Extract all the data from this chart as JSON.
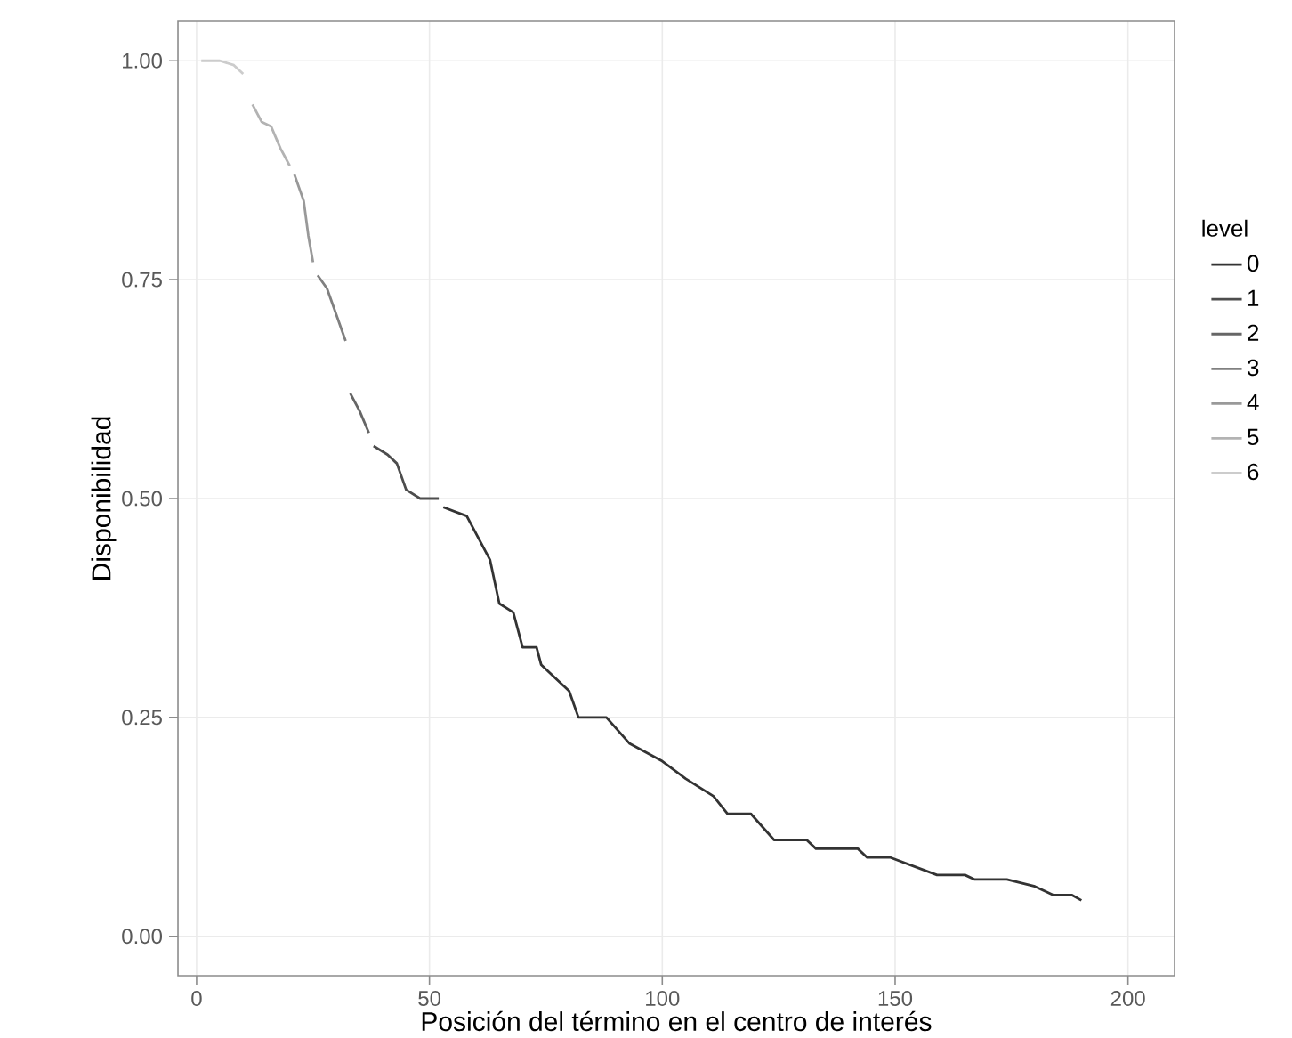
{
  "chart_data": {
    "type": "line",
    "xlabel": "Posición del término en el centro de interés",
    "ylabel": "Disponibilidad",
    "legend_title": "level",
    "xlim": [
      -4,
      210
    ],
    "ylim": [
      -0.045,
      1.045
    ],
    "xticks": [
      0,
      50,
      100,
      150,
      200
    ],
    "yticks": [
      {
        "value": 0,
        "label": "0.00"
      },
      {
        "value": 0.25,
        "label": "0.25"
      },
      {
        "value": 0.5,
        "label": "0.50"
      },
      {
        "value": 0.75,
        "label": "0.75"
      },
      {
        "value": 1,
        "label": "1.00"
      }
    ],
    "grid": true,
    "legend": "right",
    "series": [
      {
        "name": "0",
        "color": "#333333",
        "x": [
          53,
          58,
          61,
          63,
          65,
          68,
          70,
          73,
          74,
          80,
          82,
          88,
          93,
          100,
          105,
          111,
          114,
          119,
          124,
          131,
          133,
          142,
          144,
          149,
          154,
          159,
          165,
          167,
          174,
          180,
          184,
          188,
          190
        ],
        "values": [
          0.49,
          0.48,
          0.45,
          0.43,
          0.38,
          0.37,
          0.33,
          0.33,
          0.31,
          0.28,
          0.25,
          0.25,
          0.22,
          0.2,
          0.18,
          0.16,
          0.14,
          0.14,
          0.11,
          0.11,
          0.1,
          0.1,
          0.09,
          0.09,
          0.08,
          0.07,
          0.07,
          0.065,
          0.065,
          0.057,
          0.047,
          0.047,
          0.041
        ]
      },
      {
        "name": "1",
        "color": "#4d4d4d",
        "x": [
          38,
          41,
          43,
          45,
          48,
          52
        ],
        "values": [
          0.56,
          0.55,
          0.54,
          0.51,
          0.5,
          0.5
        ]
      },
      {
        "name": "2",
        "color": "#666666",
        "x": [
          33,
          35,
          37
        ],
        "values": [
          0.62,
          0.6,
          0.575
        ]
      },
      {
        "name": "3",
        "color": "#808080",
        "x": [
          26,
          28,
          30,
          32
        ],
        "values": [
          0.755,
          0.74,
          0.71,
          0.68
        ]
      },
      {
        "name": "4",
        "color": "#999999",
        "x": [
          21,
          23,
          24,
          25
        ],
        "values": [
          0.87,
          0.84,
          0.8,
          0.77
        ]
      },
      {
        "name": "5",
        "color": "#b3b3b3",
        "x": [
          12,
          14,
          16,
          18,
          20
        ],
        "values": [
          0.95,
          0.93,
          0.925,
          0.9,
          0.88
        ]
      },
      {
        "name": "6",
        "color": "#cccccc",
        "x": [
          1,
          5,
          8,
          10
        ],
        "values": [
          1,
          1,
          0.995,
          0.985
        ]
      }
    ]
  }
}
